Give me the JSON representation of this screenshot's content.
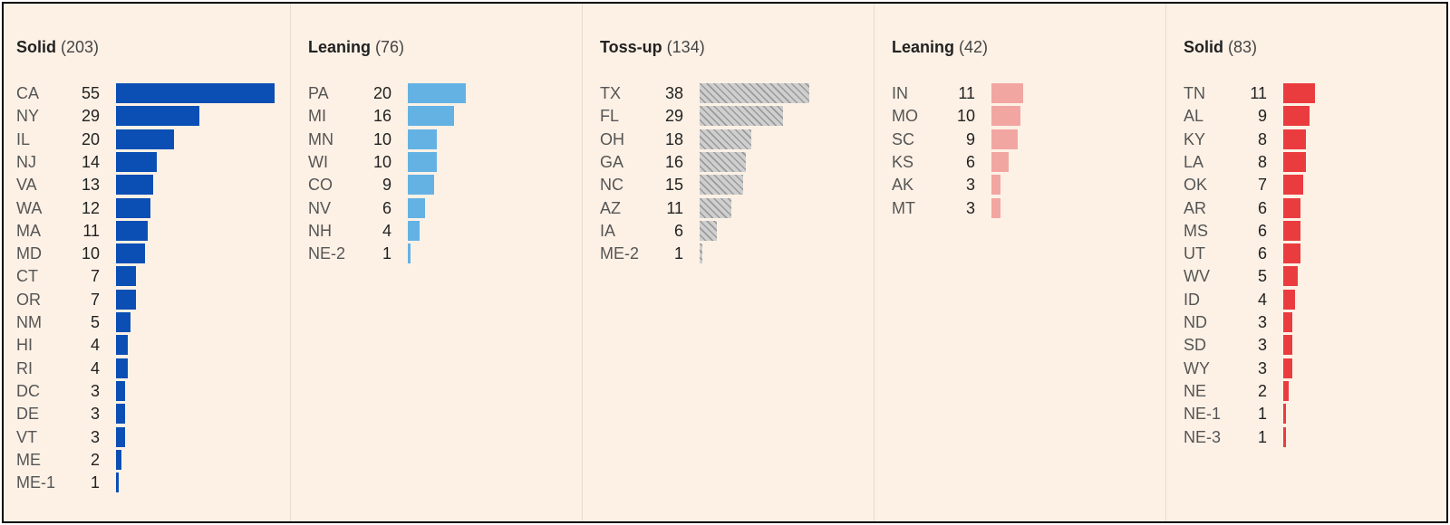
{
  "chart_data": [
    {
      "type": "bar",
      "orientation": "horizontal",
      "title": "Solid",
      "total": "(203)",
      "color": "#0b4fb4",
      "pattern": "solid",
      "categories": [
        "CA",
        "NY",
        "IL",
        "NJ",
        "VA",
        "WA",
        "MA",
        "MD",
        "CT",
        "OR",
        "NM",
        "HI",
        "RI",
        "DC",
        "DE",
        "VT",
        "ME",
        "ME-1"
      ],
      "values": [
        55,
        29,
        20,
        14,
        13,
        12,
        11,
        10,
        7,
        7,
        5,
        4,
        4,
        3,
        3,
        3,
        2,
        1
      ]
    },
    {
      "type": "bar",
      "orientation": "horizontal",
      "title": "Leaning",
      "total": "(76)",
      "color": "#64b2e4",
      "pattern": "solid",
      "categories": [
        "PA",
        "MI",
        "MN",
        "WI",
        "CO",
        "NV",
        "NH",
        "NE-2"
      ],
      "values": [
        20,
        16,
        10,
        10,
        9,
        6,
        4,
        1
      ]
    },
    {
      "type": "bar",
      "orientation": "horizontal",
      "title": "Toss-up",
      "total": "(134)",
      "color": "#cfcfcf",
      "pattern": "hatched",
      "categories": [
        "TX",
        "FL",
        "OH",
        "GA",
        "NC",
        "AZ",
        "IA",
        "ME-2"
      ],
      "values": [
        38,
        29,
        18,
        16,
        15,
        11,
        6,
        1
      ]
    },
    {
      "type": "bar",
      "orientation": "horizontal",
      "title": "Leaning",
      "total": "(42)",
      "color": "#f2a6a2",
      "pattern": "solid",
      "categories": [
        "IN",
        "MO",
        "SC",
        "KS",
        "AK",
        "MT"
      ],
      "values": [
        11,
        10,
        9,
        6,
        3,
        3
      ]
    },
    {
      "type": "bar",
      "orientation": "horizontal",
      "title": "Solid",
      "total": "(83)",
      "color": "#ea3c3f",
      "pattern": "solid",
      "categories": [
        "TN",
        "AL",
        "KY",
        "LA",
        "OK",
        "AR",
        "MS",
        "UT",
        "WV",
        "ID",
        "ND",
        "SD",
        "WY",
        "NE",
        "NE-1",
        "NE-3"
      ],
      "values": [
        11,
        9,
        8,
        8,
        7,
        6,
        6,
        6,
        5,
        4,
        3,
        3,
        3,
        2,
        1,
        1
      ]
    }
  ]
}
